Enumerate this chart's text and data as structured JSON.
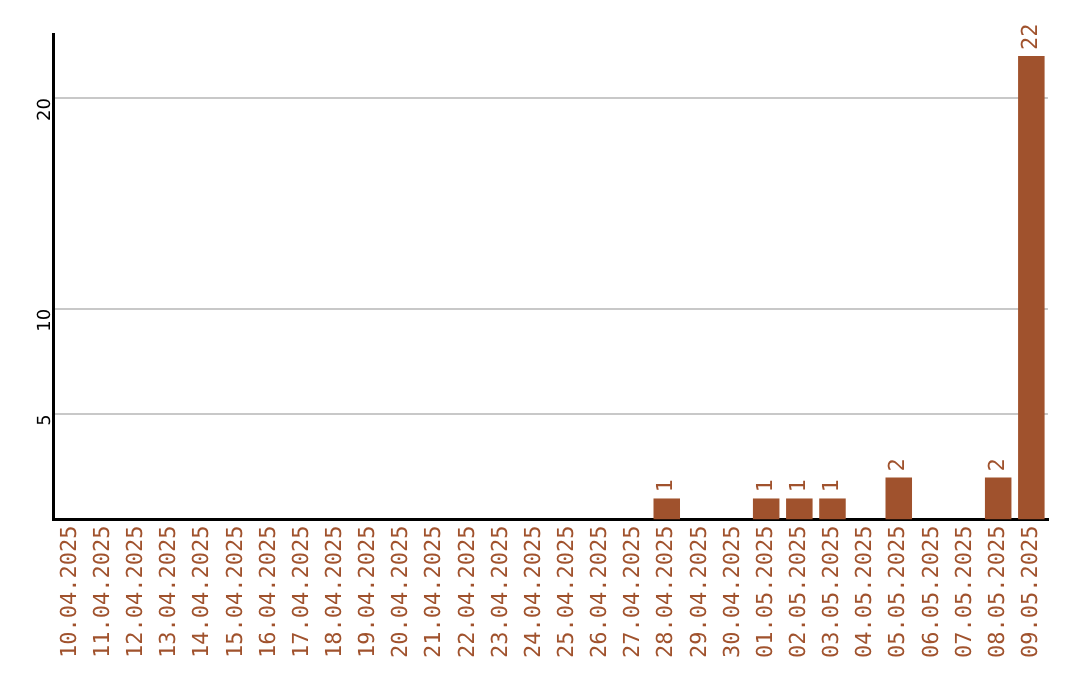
{
  "chart_data": {
    "type": "bar",
    "categories": [
      "10.04.2025",
      "11.04.2025",
      "12.04.2025",
      "13.04.2025",
      "14.04.2025",
      "15.04.2025",
      "16.04.2025",
      "17.04.2025",
      "18.04.2025",
      "19.04.2025",
      "20.04.2025",
      "21.04.2025",
      "22.04.2025",
      "23.04.2025",
      "24.04.2025",
      "25.04.2025",
      "26.04.2025",
      "27.04.2025",
      "28.04.2025",
      "29.04.2025",
      "30.04.2025",
      "01.05.2025",
      "02.05.2025",
      "03.05.2025",
      "04.05.2025",
      "05.05.2025",
      "06.05.2025",
      "07.05.2025",
      "08.05.2025",
      "09.05.2025"
    ],
    "values": [
      0,
      0,
      0,
      0,
      0,
      0,
      0,
      0,
      0,
      0,
      0,
      0,
      0,
      0,
      0,
      0,
      0,
      0,
      1,
      0,
      0,
      1,
      1,
      1,
      0,
      2,
      0,
      0,
      2,
      22
    ],
    "value_labels": [
      null,
      null,
      null,
      null,
      null,
      null,
      null,
      null,
      null,
      null,
      null,
      null,
      null,
      null,
      null,
      null,
      null,
      null,
      "1",
      null,
      null,
      "1",
      "1",
      "1",
      null,
      "2",
      null,
      null,
      "2",
      "22"
    ],
    "color": "#a0522d",
    "ylim": [
      0,
      23
    ],
    "yticks": [
      5,
      10,
      20
    ],
    "grid": "y",
    "legend": false
  }
}
